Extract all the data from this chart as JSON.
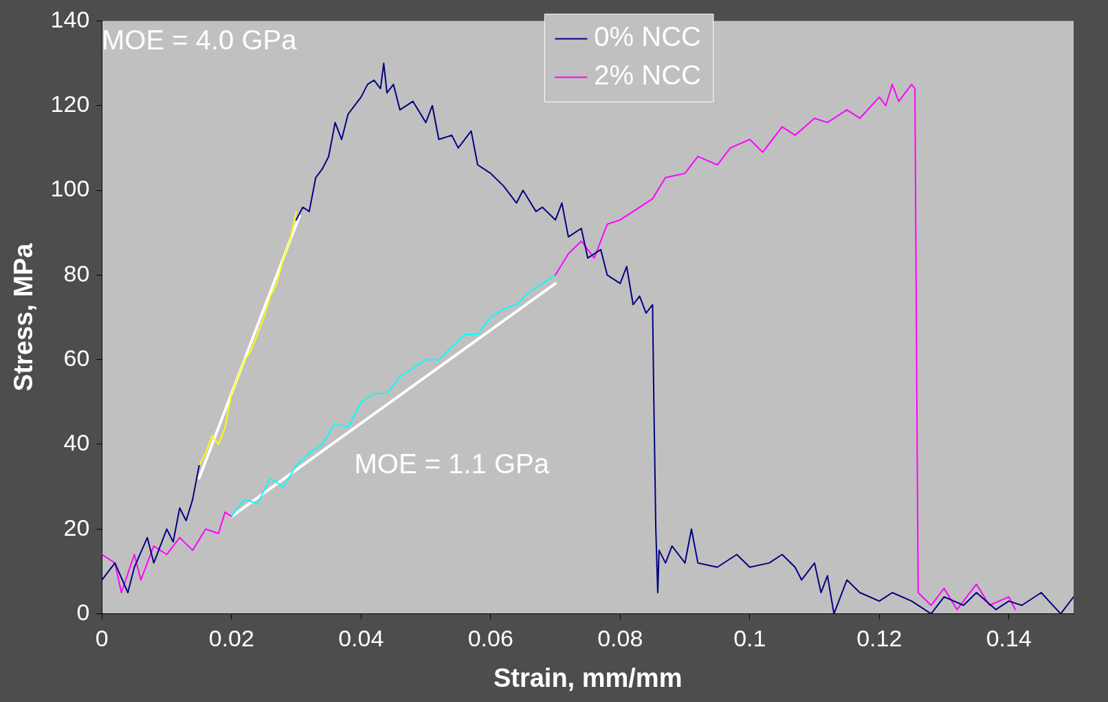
{
  "chart_data": {
    "type": "line",
    "xlabel": "Strain, mm/mm",
    "ylabel": "Stress, MPa",
    "xlim": [
      0,
      0.15
    ],
    "xticks": [
      0,
      0.02,
      0.04,
      0.06,
      0.08,
      0.1,
      0.12,
      0.14
    ],
    "ylim": [
      0,
      140
    ],
    "yticks": [
      0,
      20,
      40,
      60,
      80,
      100,
      120,
      140
    ],
    "grid": false,
    "legend": "top",
    "marker": "none",
    "line_style": "solid",
    "series": [
      {
        "name": "0% NCC",
        "color": "#000080",
        "x": [
          0,
          0.002,
          0.004,
          0.005,
          0.007,
          0.008,
          0.01,
          0.011,
          0.012,
          0.013,
          0.014,
          0.015,
          0.022,
          0.03,
          0.031,
          0.032,
          0.033,
          0.034,
          0.035,
          0.036,
          0.037,
          0.038,
          0.039,
          0.04,
          0.041,
          0.042,
          0.043,
          0.0435,
          0.044,
          0.045,
          0.046,
          0.048,
          0.05,
          0.051,
          0.052,
          0.054,
          0.055,
          0.057,
          0.058,
          0.06,
          0.062,
          0.064,
          0.065,
          0.067,
          0.068,
          0.07,
          0.071,
          0.072,
          0.074,
          0.075,
          0.077,
          0.078,
          0.08,
          0.081,
          0.082,
          0.083,
          0.084,
          0.085,
          0.0852,
          0.0855,
          0.0858,
          0.086,
          0.087,
          0.088,
          0.09,
          0.091,
          0.092,
          0.095,
          0.098,
          0.1,
          0.103,
          0.105,
          0.107,
          0.108,
          0.11,
          0.111,
          0.112,
          0.113,
          0.114,
          0.115,
          0.117,
          0.12,
          0.122,
          0.125,
          0.128,
          0.13,
          0.133,
          0.135,
          0.138,
          0.14,
          0.142,
          0.145,
          0.148,
          0.15
        ],
        "values": [
          8,
          12,
          5,
          11,
          18,
          12,
          20,
          17,
          25,
          22,
          27,
          35,
          null,
          93,
          96,
          95,
          103,
          105,
          108,
          116,
          112,
          118,
          120,
          122,
          125,
          126,
          124,
          130,
          123,
          125,
          119,
          121,
          116,
          120,
          112,
          113,
          110,
          114,
          106,
          104,
          101,
          97,
          100,
          95,
          96,
          93,
          97,
          89,
          91,
          84,
          86,
          80,
          78,
          82,
          73,
          75,
          71,
          73,
          50,
          20,
          5,
          15,
          12,
          16,
          12,
          20,
          12,
          11,
          14,
          11,
          12,
          14,
          11,
          8,
          12,
          5,
          9,
          0,
          4,
          8,
          5,
          3,
          5,
          3,
          0,
          4,
          2,
          5,
          1,
          3,
          2,
          5,
          0,
          4
        ]
      },
      {
        "color": "#ffff00",
        "x": [
          0.015,
          0.016,
          0.017,
          0.018,
          0.019,
          0.02,
          0.021,
          0.022,
          0.023,
          0.024,
          0.025,
          0.026,
          0.027,
          0.028,
          0.029,
          0.03
        ],
        "values": [
          35,
          38,
          42,
          40,
          44,
          52,
          56,
          60,
          62,
          66,
          70,
          75,
          78,
          84,
          88,
          95
        ]
      },
      {
        "name": "2% NCC",
        "color": "#ff00ff",
        "x": [
          0,
          0.002,
          0.003,
          0.005,
          0.006,
          0.008,
          0.01,
          0.012,
          0.014,
          0.016,
          0.018,
          0.019,
          0.02,
          0.045,
          0.07,
          0.072,
          0.074,
          0.076,
          0.078,
          0.08,
          0.082,
          0.085,
          0.087,
          0.09,
          0.092,
          0.095,
          0.097,
          0.1,
          0.102,
          0.105,
          0.107,
          0.11,
          0.112,
          0.115,
          0.117,
          0.12,
          0.121,
          0.122,
          0.123,
          0.124,
          0.125,
          0.1255,
          0.1258,
          0.126,
          0.128,
          0.13,
          0.132,
          0.135,
          0.137,
          0.14,
          0.141
        ],
        "values": [
          14,
          12,
          5,
          14,
          8,
          16,
          14,
          18,
          15,
          20,
          19,
          24,
          23,
          null,
          80,
          85,
          88,
          84,
          92,
          93,
          95,
          98,
          103,
          104,
          108,
          106,
          110,
          112,
          109,
          115,
          113,
          117,
          116,
          119,
          117,
          122,
          120,
          125,
          121,
          123,
          125,
          124,
          50,
          5,
          2,
          6,
          1,
          7,
          2,
          4,
          1
        ]
      },
      {
        "color": "#00ffff",
        "x": [
          0.02,
          0.022,
          0.024,
          0.026,
          0.028,
          0.03,
          0.032,
          0.034,
          0.036,
          0.038,
          0.04,
          0.042,
          0.044,
          0.046,
          0.048,
          0.05,
          0.052,
          0.054,
          0.056,
          0.058,
          0.06,
          0.062,
          0.064,
          0.066,
          0.068,
          0.07
        ],
        "values": [
          23,
          27,
          26,
          32,
          30,
          35,
          38,
          40,
          45,
          44,
          50,
          52,
          52,
          56,
          58,
          60,
          60,
          63,
          66,
          66,
          70,
          72,
          73,
          76,
          78,
          80
        ]
      },
      {
        "color": "#ffffff",
        "x": [
          0.015,
          0.0305
        ],
        "values": [
          32,
          94
        ]
      },
      {
        "color": "#ffffff",
        "x": [
          0.02,
          0.07
        ],
        "values": [
          23,
          78
        ]
      }
    ],
    "annotations": [
      "MOE = 4.0 GPa",
      "MOE = 1.1 GPa"
    ]
  }
}
